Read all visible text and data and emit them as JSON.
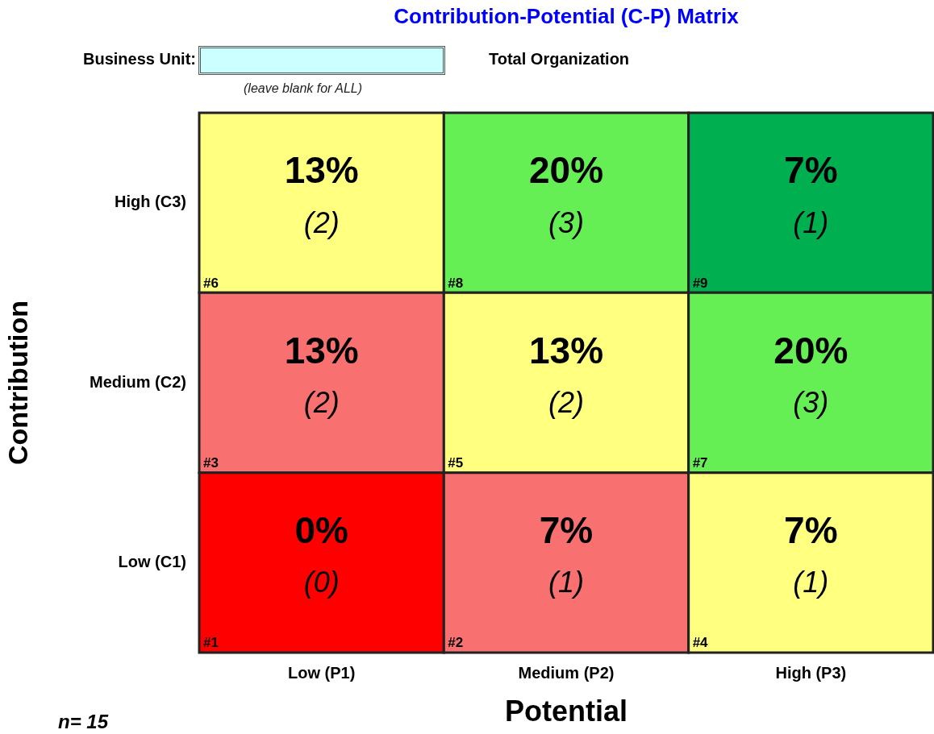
{
  "chart_data": {
    "type": "heatmap",
    "title": "Contribution-Potential (C-P) Matrix",
    "xlabel": "Potential",
    "ylabel": "Contribution",
    "categories": [
      "Low (P1)",
      "Medium (P2)",
      "High (P3)"
    ],
    "y_categories": [
      "High (C3)",
      "Medium (C2)",
      "Low (C1)"
    ],
    "cells": [
      [
        13,
        20,
        7
      ],
      [
        13,
        13,
        20
      ],
      [
        0,
        7,
        7
      ]
    ],
    "cell_labels": [
      [
        "13%",
        "20%",
        "7%"
      ],
      [
        "13%",
        "13%",
        "20%"
      ],
      [
        "0%",
        "7%",
        "7%"
      ]
    ],
    "colors": [
      [
        "#ffff80",
        "#66ee55",
        "#00b050"
      ],
      [
        "#f87070",
        "#ffff80",
        "#66ee55"
      ],
      [
        "#ff0000",
        "#f87070",
        "#ffff80"
      ]
    ],
    "annotations": [
      "Business Unit:",
      "(leave blank for ALL)",
      "Total Organization",
      "n= 15",
      "(2)",
      "(3)",
      "(1)",
      "(2)",
      "(2)",
      "(3)",
      "(0)",
      "(1)",
      "(1)",
      "#6",
      "#8",
      "#9",
      "#3",
      "#5",
      "#7",
      "#1",
      "#2",
      "#4"
    ]
  }
}
